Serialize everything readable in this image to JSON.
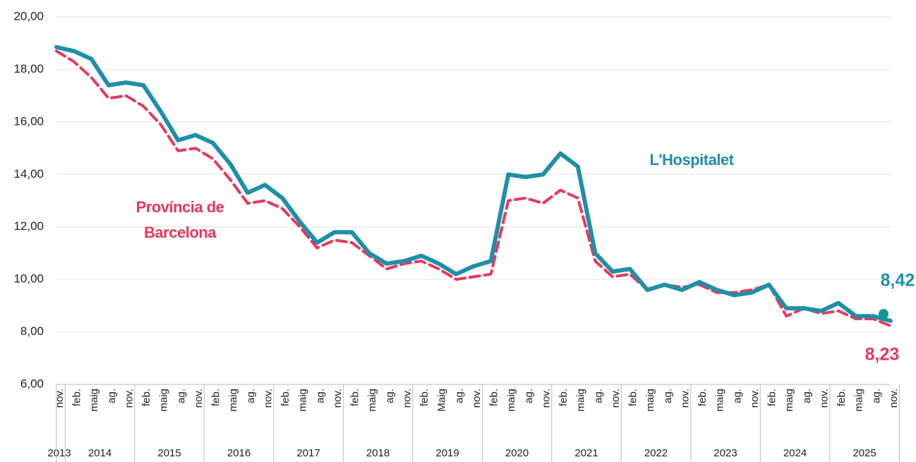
{
  "chart_data": {
    "type": "line",
    "categories": [
      "nov.",
      "feb.",
      "maig",
      "ag.",
      "nov.",
      "feb.",
      "maig",
      "ag.",
      "nov.",
      "feb.",
      "maig",
      "ag.",
      "nov.",
      "feb.",
      "maig",
      "ag.",
      "nov.",
      "feb.",
      "maig",
      "ag.",
      "nov.",
      "feb.",
      "Maig",
      "ag.",
      "nov.",
      "feb.",
      "maig",
      "ag.",
      "nov.",
      "feb.",
      "maig",
      "ag.",
      "nov.",
      "feb.",
      "maig",
      "ag.",
      "nov.",
      "feb.",
      "maig",
      "ag.",
      "nov.",
      "feb.",
      "maig",
      "ag.",
      "nov.",
      "feb.",
      "maig",
      "ag.",
      "nov."
    ],
    "year_labels": [
      "2013",
      "2014",
      "2015",
      "2016",
      "2017",
      "2018",
      "2019",
      "2020",
      "2021",
      "2022",
      "2023",
      "2024",
      "2025"
    ],
    "series": [
      {
        "name": "L'Hospitalet",
        "color": "#1f8fa8",
        "dashed": false,
        "values": [
          18.85,
          18.7,
          18.4,
          17.4,
          17.5,
          17.4,
          16.4,
          15.3,
          15.5,
          15.2,
          14.4,
          13.3,
          13.6,
          13.1,
          12.2,
          11.4,
          11.8,
          11.8,
          11.0,
          10.6,
          10.7,
          10.9,
          10.6,
          10.2,
          10.5,
          10.7,
          14.0,
          13.9,
          14.0,
          14.8,
          14.3,
          11.0,
          10.3,
          10.4,
          9.6,
          9.8,
          9.6,
          9.9,
          9.6,
          9.4,
          9.5,
          9.8,
          8.9,
          8.9,
          8.8,
          9.1,
          8.6,
          8.6,
          8.42
        ],
        "value_labels": [
          null,
          null,
          null,
          null,
          null,
          null,
          null,
          null,
          null,
          null,
          null,
          null,
          null,
          null,
          null,
          null,
          null,
          null,
          null,
          null,
          null,
          null,
          null,
          null,
          null,
          null,
          null,
          null,
          null,
          null,
          null,
          null,
          null,
          null,
          null,
          null,
          null,
          null,
          null,
          null,
          null,
          null,
          null,
          null,
          null,
          null,
          null,
          null,
          "8,42"
        ]
      },
      {
        "name": "Província de Barcelona",
        "color": "#e8385a",
        "dashed": true,
        "values": [
          18.7,
          18.3,
          17.7,
          16.9,
          17.0,
          16.6,
          15.9,
          14.9,
          15.0,
          14.6,
          13.8,
          12.9,
          13.0,
          12.7,
          12.0,
          11.2,
          11.5,
          11.4,
          10.9,
          10.4,
          10.6,
          10.7,
          10.4,
          10.0,
          10.1,
          10.2,
          13.0,
          13.1,
          12.9,
          13.4,
          13.1,
          10.7,
          10.1,
          10.2,
          9.6,
          9.8,
          9.7,
          9.8,
          9.5,
          9.5,
          9.6,
          9.8,
          8.6,
          8.9,
          8.7,
          8.8,
          8.5,
          8.5,
          8.23
        ],
        "value_labels": [
          null,
          null,
          null,
          null,
          null,
          null,
          null,
          null,
          null,
          null,
          null,
          null,
          null,
          null,
          null,
          null,
          null,
          null,
          null,
          null,
          null,
          null,
          null,
          null,
          null,
          null,
          null,
          null,
          null,
          null,
          null,
          null,
          null,
          null,
          null,
          null,
          null,
          null,
          null,
          null,
          null,
          null,
          null,
          null,
          null,
          null,
          null,
          null,
          "8,23"
        ]
      }
    ],
    "ylim": [
      6,
      20
    ],
    "yticks": [
      {
        "value": 6,
        "label": "6,00"
      },
      {
        "value": 8,
        "label": "8,00"
      },
      {
        "value": 10,
        "label": "10,00"
      },
      {
        "value": 12,
        "label": "12,00"
      },
      {
        "value": 14,
        "label": "14,00"
      },
      {
        "value": 16,
        "label": "16,00"
      },
      {
        "value": 18,
        "label": "18,00"
      },
      {
        "value": 20,
        "label": "20,00"
      }
    ],
    "grid": true
  }
}
